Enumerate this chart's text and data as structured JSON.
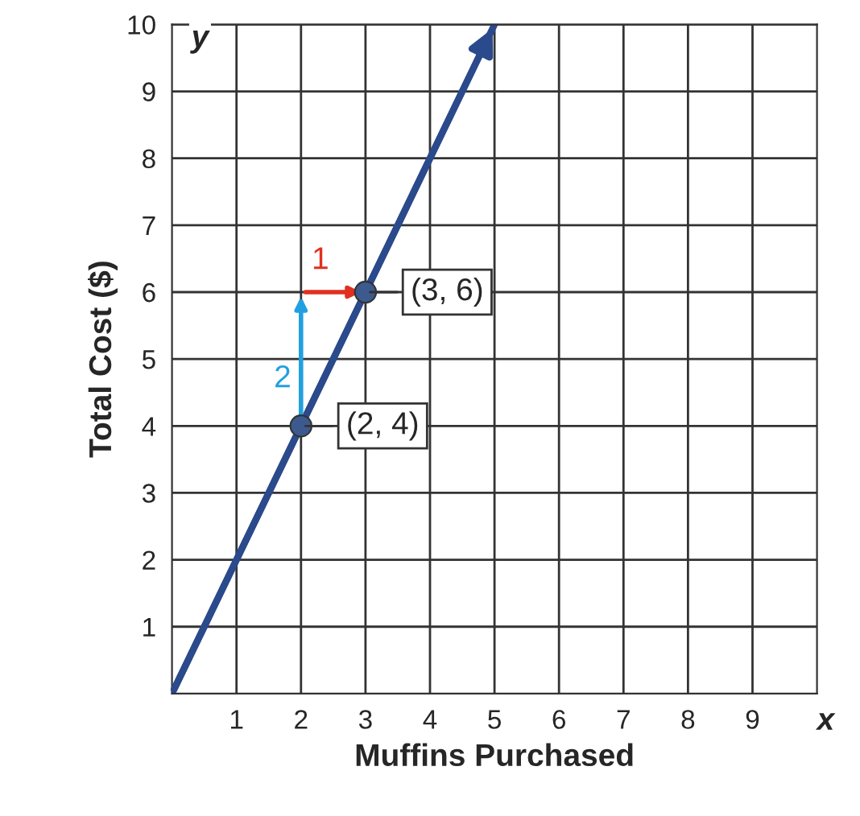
{
  "chart_data": {
    "type": "line",
    "xlabel": "Muffins Purchased",
    "ylabel": "Total Cost ($)",
    "xlim": [
      0,
      10
    ],
    "ylim": [
      0,
      10
    ],
    "xticks": [
      1,
      2,
      3,
      4,
      5,
      6,
      7,
      8,
      9
    ],
    "yticks": [
      1,
      2,
      3,
      4,
      5,
      6,
      7,
      8,
      9,
      10
    ],
    "grid": true,
    "marker": "none",
    "line_style": "solid",
    "series": [
      {
        "color": "#2b4a8c",
        "x": [
          0,
          5
        ],
        "values": [
          0,
          10
        ]
      },
      {
        "type": "scatter",
        "color": "#3d5a8f",
        "x": [
          2,
          3
        ],
        "values": [
          4,
          6
        ],
        "marker": "circle"
      }
    ],
    "annotations": [
      {
        "text": "(3, 6)",
        "x": 3,
        "y": 6
      },
      {
        "text": "(2, 4)",
        "x": 2,
        "y": 4
      },
      "1",
      "2",
      "x",
      "y"
    ]
  }
}
